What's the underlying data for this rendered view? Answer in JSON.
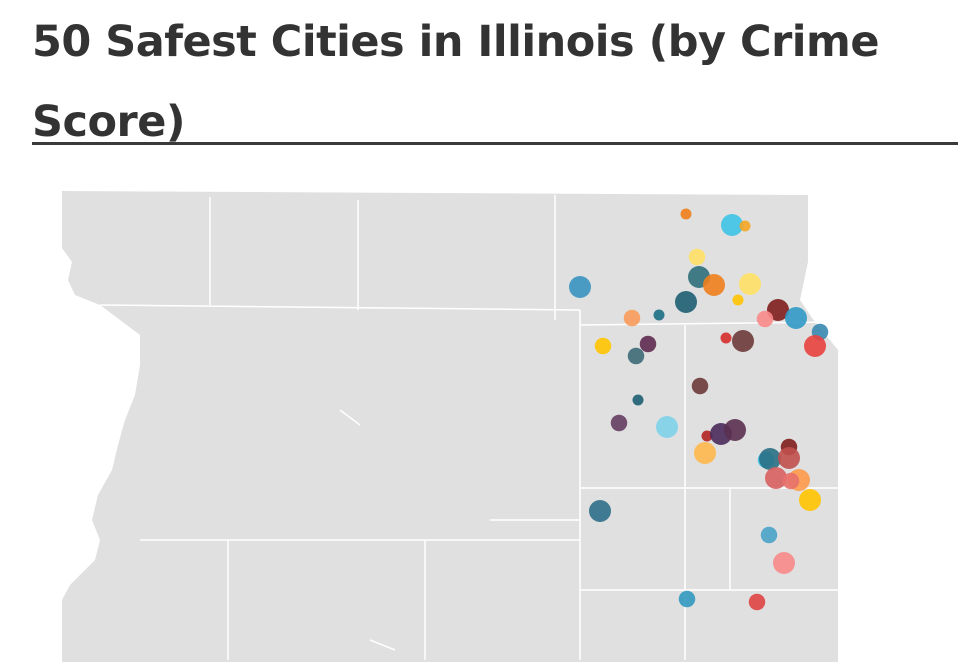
{
  "title": "50 Safest Cities in Illinois (by Crime Score)",
  "colors": {
    "land": "#e0e0e0",
    "county_border": "#ffffff",
    "rule": "#3a3a3a",
    "title": "#333333"
  },
  "markers": [
    {
      "color": "#f07f1c",
      "size": 1
    },
    {
      "color": "#3ec3e6",
      "size": 2
    },
    {
      "color": "#f5a623",
      "size": 1
    },
    {
      "color": "#ffe066",
      "size": 1.5
    },
    {
      "color": "#2f6f7a",
      "size": 2
    },
    {
      "color": "#f07f1c",
      "size": 2
    },
    {
      "color": "#ffe066",
      "size": 2
    },
    {
      "color": "#3a93c0",
      "size": 2
    },
    {
      "color": "#1d5f73",
      "size": 2
    },
    {
      "color": "#ffc400",
      "size": 1
    },
    {
      "color": "#f99b5a",
      "size": 1.5
    },
    {
      "color": "#1d6f85",
      "size": 1
    },
    {
      "color": "#7f1d1d",
      "size": 2
    },
    {
      "color": "#f88a8a",
      "size": 1.5
    },
    {
      "color": "#3199c7",
      "size": 2
    },
    {
      "color": "#3a8ab0",
      "size": 1.5
    },
    {
      "color": "#ffc400",
      "size": 1.5
    },
    {
      "color": "#5e2a50",
      "size": 1.5
    },
    {
      "color": "#3d6a77",
      "size": 1.5
    },
    {
      "color": "#d62d2d",
      "size": 1
    },
    {
      "color": "#6e3a3a",
      "size": 2
    },
    {
      "color": "#e8423f",
      "size": 2
    },
    {
      "color": "#6e3a3a",
      "size": 1.5
    },
    {
      "color": "#1d5f73",
      "size": 1
    },
    {
      "color": "#663e62",
      "size": 1.5
    },
    {
      "color": "#7fd1ea",
      "size": 2
    },
    {
      "color": "#b22222",
      "size": 1
    },
    {
      "color": "#4a2a5a",
      "size": 2
    },
    {
      "color": "#5a3050",
      "size": 2
    },
    {
      "color": "#ffb84d",
      "size": 2
    },
    {
      "color": "#7f1d1d",
      "size": 1.5
    },
    {
      "color": "#3ec3e6",
      "size": 1.5
    },
    {
      "color": "#2a6f85",
      "size": 2
    },
    {
      "color": "#c0504d",
      "size": 2
    },
    {
      "color": "#d86060",
      "size": 2
    },
    {
      "color": "#ff9a4a",
      "size": 2
    },
    {
      "color": "#e8706a",
      "size": 1.5
    },
    {
      "color": "#ffc400",
      "size": 2
    },
    {
      "color": "#2d6f8a",
      "size": 2
    },
    {
      "color": "#4aa3c8",
      "size": 1.5
    },
    {
      "color": "#f88a8a",
      "size": 2
    },
    {
      "color": "#3399c0",
      "size": 1.5
    },
    {
      "color": "#e04444",
      "size": 1.5
    }
  ]
}
